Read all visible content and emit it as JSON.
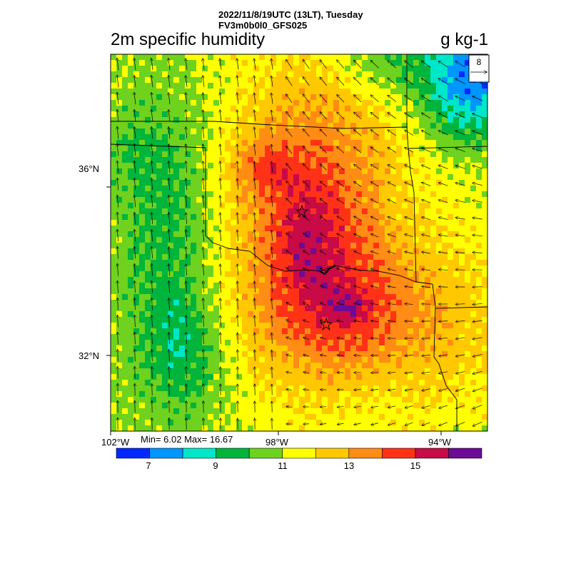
{
  "header": {
    "datetime": "2022/11/8/19UTC (13LT), Tuesday",
    "run": "FV3m0b0l0_GFS025"
  },
  "title": "2m specific humidity",
  "units": "g kg-1",
  "ref_vector": {
    "label": "8"
  },
  "lat_ticks": [
    "36°N",
    "32°N"
  ],
  "lon_ticks": [
    "102°W",
    "98°W",
    "94°W"
  ],
  "stats": {
    "text": "Min= 6.02 Max= 16.67",
    "min": 6.02,
    "max": 16.67
  },
  "colorbar": {
    "levels": [
      {
        "hi": 6.5,
        "color": "#0028ff"
      },
      {
        "hi": 7.5,
        "color": "#0096ff"
      },
      {
        "hi": 8.5,
        "color": "#00e6c8"
      },
      {
        "hi": 9.5,
        "color": "#00b43c"
      },
      {
        "hi": 10.5,
        "color": "#6ed21e"
      },
      {
        "hi": 11.5,
        "color": "#ffff00"
      },
      {
        "hi": 12.5,
        "color": "#ffc800"
      },
      {
        "hi": 13.5,
        "color": "#ff8c14"
      },
      {
        "hi": 14.5,
        "color": "#ff3218"
      },
      {
        "hi": 15.5,
        "color": "#c80a46"
      },
      {
        "hi": 99,
        "color": "#6e0a96"
      }
    ],
    "labels": [
      "7",
      "9",
      "11",
      "13",
      "15"
    ]
  }
}
